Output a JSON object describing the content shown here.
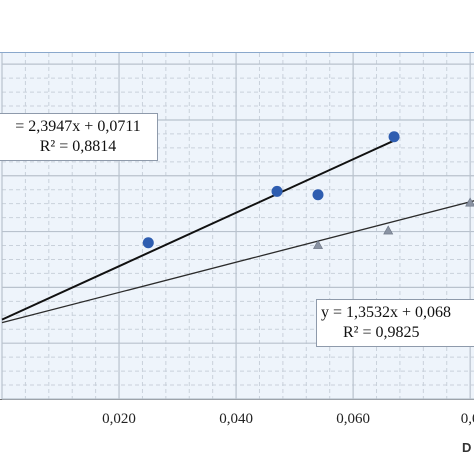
{
  "chart_data": {
    "type": "scatter",
    "x_ticks": [
      "0,020",
      "0,040",
      "0,060",
      "0,0"
    ],
    "x_axis_label_fragment": "D",
    "xlim": [
      0.0,
      0.081
    ],
    "ylim": [
      0.0,
      0.31
    ],
    "grid": "major and minor, dashed minor",
    "series": [
      {
        "marker": "circle",
        "color": "#2e5db0",
        "points": [
          {
            "x": 0.025,
            "y": 0.14
          },
          {
            "x": 0.047,
            "y": 0.186
          },
          {
            "x": 0.054,
            "y": 0.183
          },
          {
            "x": 0.067,
            "y": 0.235
          }
        ],
        "trendline": {
          "color": "#111111",
          "x_range": [
            0.0,
            0.067
          ],
          "slope": 2.3947,
          "intercept": 0.0711,
          "equation": "= 2,3947x + 0,0711",
          "r2": "R² = 0,8814"
        }
      },
      {
        "marker": "triangle",
        "color": "#8a93a3",
        "points": [
          {
            "x": 0.054,
            "y": 0.138
          },
          {
            "x": 0.066,
            "y": 0.151
          },
          {
            "x": 0.08,
            "y": 0.176
          }
        ],
        "trendline": {
          "color": "#2b2b2b",
          "x_range": [
            0.0,
            0.081
          ],
          "slope": 1.3532,
          "intercept": 0.0684,
          "equation": "y = 1,3532x + 0,068",
          "r2": "R² = 0,9825"
        }
      }
    ]
  },
  "colors": {
    "plot_background": "#eef4fb",
    "major_grid": "#b9c2cd",
    "minor_grid": "#c9d1db"
  }
}
